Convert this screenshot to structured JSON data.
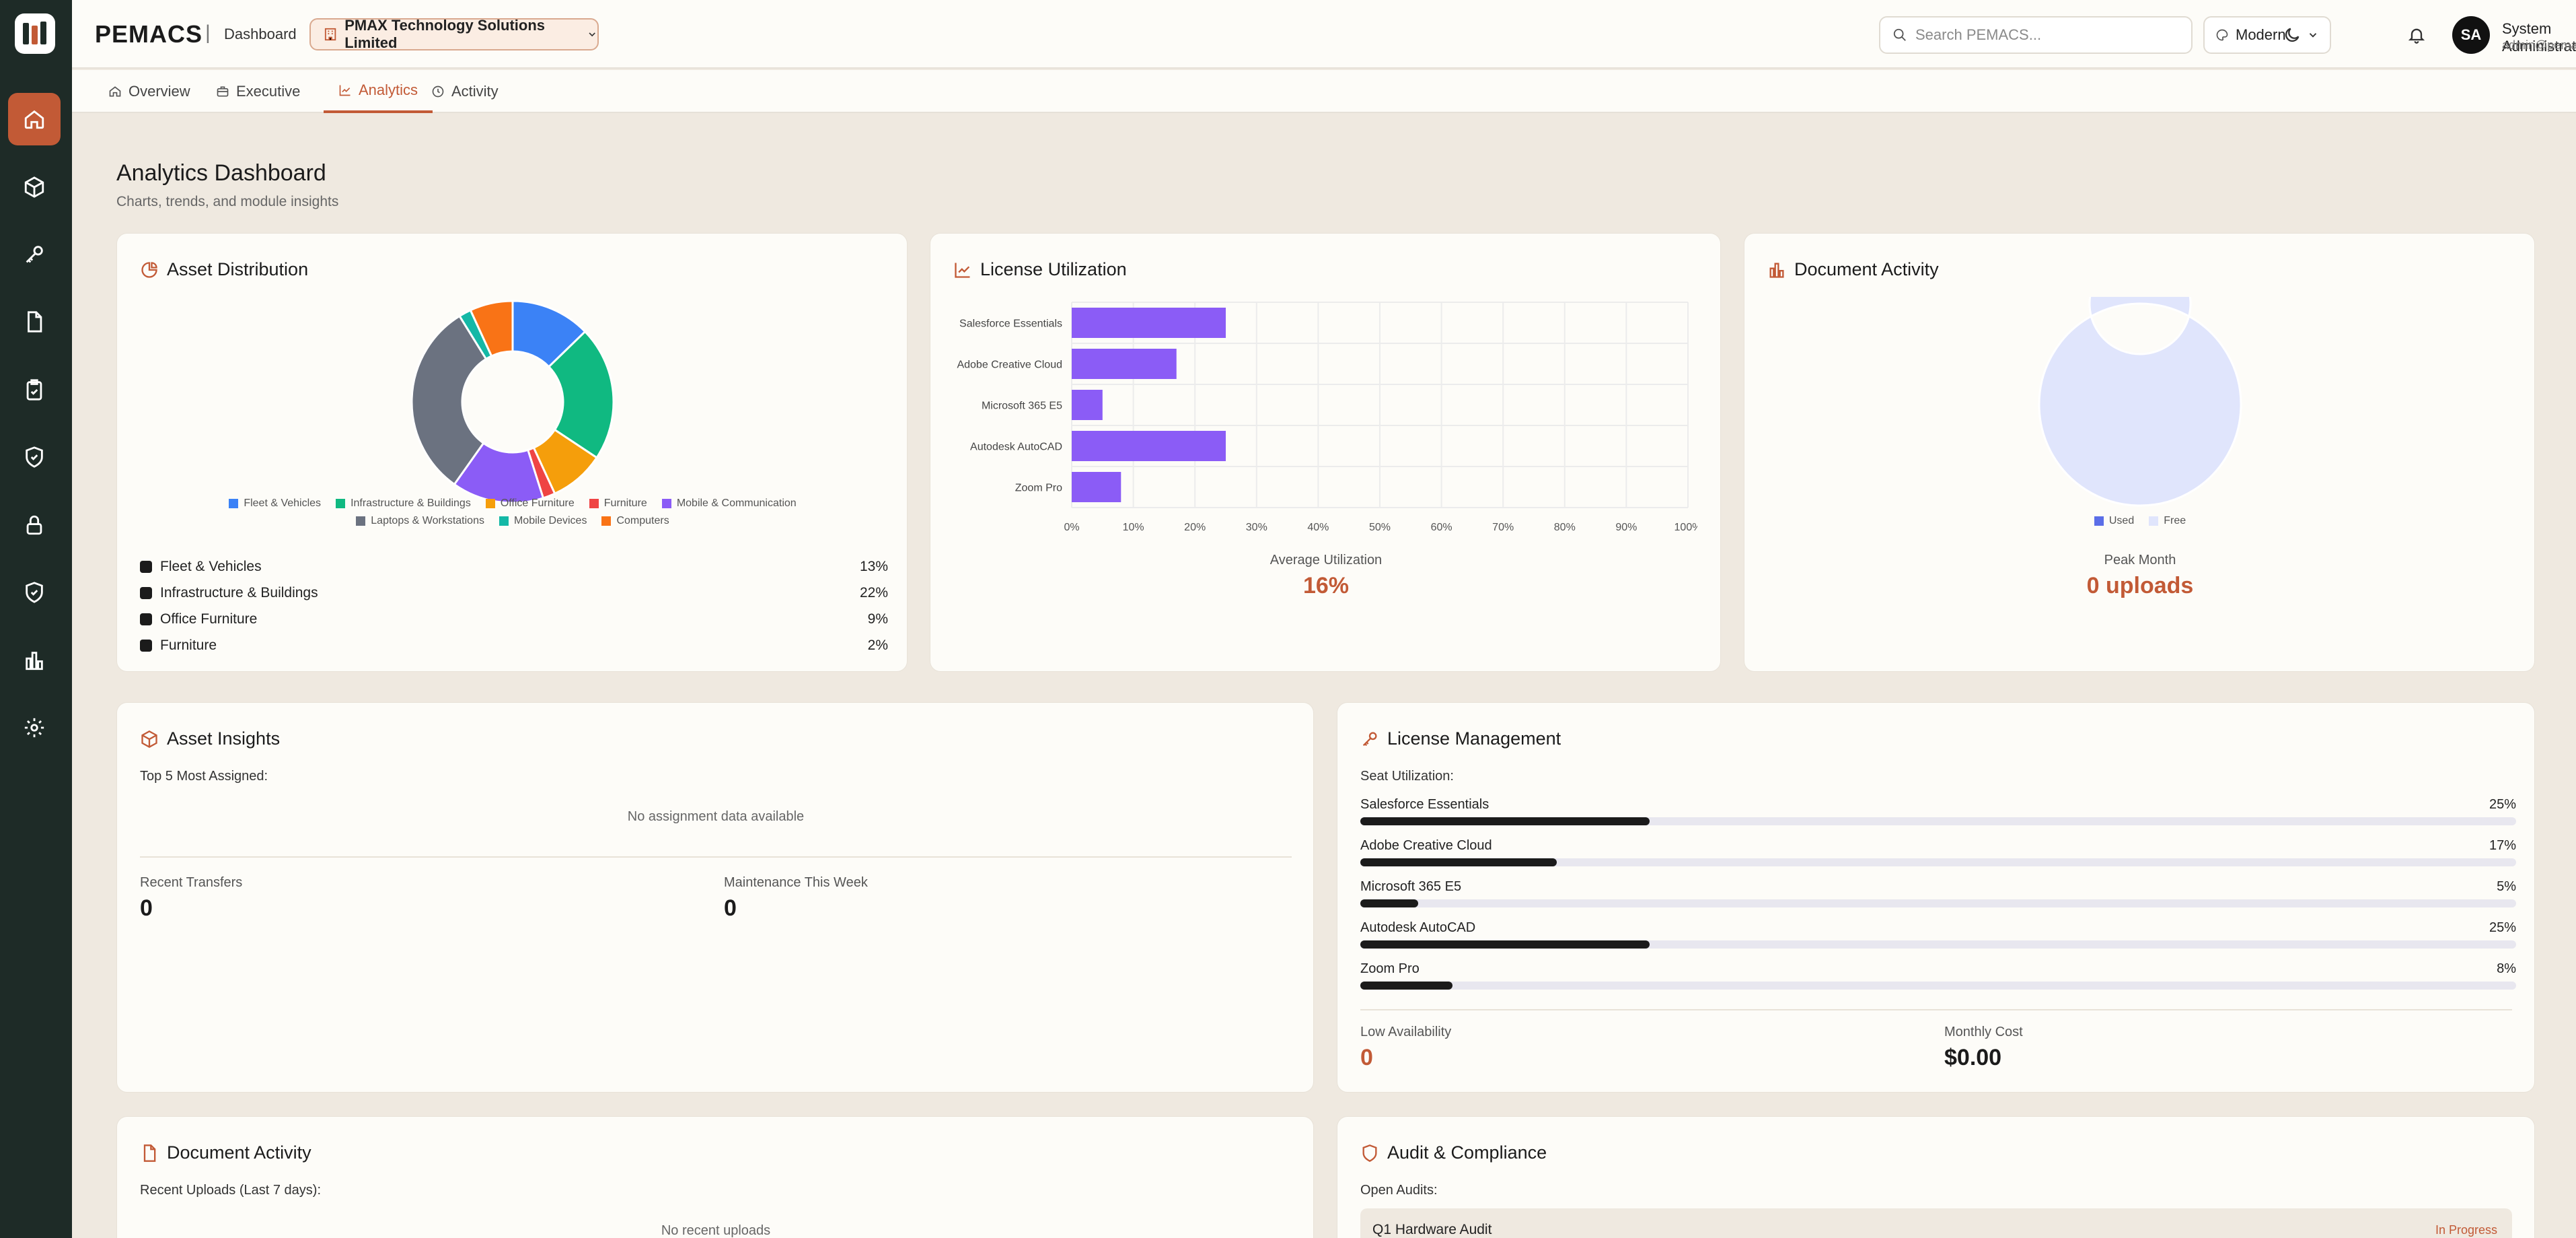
{
  "header": {
    "brand": "PEMACS",
    "separator": "|",
    "section": "Dashboard",
    "organization": "PMAX Technology Solutions Limited",
    "search_placeholder": "Search PEMACS...",
    "theme": "Modern",
    "user": {
      "initials": "SA",
      "name": "System Administrator",
      "email": "admin@pemacs.com"
    }
  },
  "sidebar": {
    "items": [
      {
        "icon": "home-icon",
        "active": true
      },
      {
        "icon": "cube-icon"
      },
      {
        "icon": "key-icon"
      },
      {
        "icon": "document-icon"
      },
      {
        "icon": "clipboard-check-icon"
      },
      {
        "icon": "shield-check-icon"
      },
      {
        "icon": "lock-icon"
      },
      {
        "icon": "shield-icon"
      },
      {
        "icon": "bar-chart-icon"
      },
      {
        "icon": "gear-icon"
      }
    ]
  },
  "tabs": [
    {
      "label": "Overview",
      "icon": "home-icon"
    },
    {
      "label": "Executive",
      "icon": "briefcase-icon"
    },
    {
      "label": "Analytics",
      "icon": "trend-icon",
      "active": true
    },
    {
      "label": "Activity",
      "icon": "clock-icon"
    }
  ],
  "page": {
    "title": "Analytics Dashboard",
    "subtitle": "Charts, trends, and module insights"
  },
  "asset_distribution": {
    "title": "Asset Distribution",
    "list": [
      {
        "label": "Fleet & Vehicles",
        "pct": "13%"
      },
      {
        "label": "Infrastructure & Buildings",
        "pct": "22%"
      },
      {
        "label": "Office Furniture",
        "pct": "9%"
      },
      {
        "label": "Furniture",
        "pct": "2%"
      }
    ]
  },
  "license_utilization": {
    "title": "License Utilization",
    "avg_label": "Average Utilization",
    "avg_value": "16%"
  },
  "document_activity_chart": {
    "title": "Document Activity",
    "peak_label": "Peak Month",
    "peak_value": "0 uploads"
  },
  "asset_insights": {
    "title": "Asset Insights",
    "top_label": "Top 5 Most Assigned:",
    "empty": "No assignment data available",
    "recent_transfers_label": "Recent Transfers",
    "recent_transfers_value": "0",
    "maintenance_label": "Maintenance This Week",
    "maintenance_value": "0"
  },
  "license_management": {
    "title": "License Management",
    "seat_label": "Seat Utilization:",
    "seats": [
      {
        "name": "Salesforce Essentials",
        "pct_text": "25%",
        "pct": 25
      },
      {
        "name": "Adobe Creative Cloud",
        "pct_text": "17%",
        "pct": 17
      },
      {
        "name": "Microsoft 365 E5",
        "pct_text": "5%",
        "pct": 5
      },
      {
        "name": "Autodesk AutoCAD",
        "pct_text": "25%",
        "pct": 25
      },
      {
        "name": "Zoom Pro",
        "pct_text": "8%",
        "pct": 8
      }
    ],
    "low_label": "Low Availability",
    "low_value": "0",
    "cost_label": "Monthly Cost",
    "cost_value": "$0.00"
  },
  "document_activity": {
    "title": "Document Activity",
    "recent_label": "Recent Uploads (Last 7 days):",
    "empty": "No recent uploads"
  },
  "audit": {
    "title": "Audit & Compliance",
    "open_label": "Open Audits:",
    "audits": [
      {
        "name": "Q1 Hardware Audit",
        "status": "In Progress"
      }
    ]
  },
  "colors": {
    "accent": "#C25A36",
    "sidebar": "#1E2B27",
    "bar_purple": "#8B5CF6",
    "doc_used": "#5B6EE8",
    "doc_free": "#E0E5FC"
  },
  "chart_data": [
    {
      "type": "pie",
      "variant": "donut",
      "labels": [
        "Fleet & Vehicles",
        "Infrastructure & Buildings",
        "Office Furniture",
        "Furniture",
        "Mobile & Communication",
        "Laptops & Workstations",
        "Mobile Devices",
        "Computers"
      ],
      "values": [
        13,
        22,
        9,
        2,
        15,
        32,
        2,
        7
      ],
      "colors": [
        "#3B82F6",
        "#10B981",
        "#F59E0B",
        "#EF4444",
        "#8B5CF6",
        "#6B7280",
        "#14B8A6",
        "#F97316"
      ],
      "legend": "bottom"
    },
    {
      "type": "bar",
      "orientation": "horizontal",
      "categories": [
        "Salesforce Essentials",
        "Adobe Creative Cloud",
        "Microsoft 365 E5",
        "Autodesk AutoCAD",
        "Zoom Pro"
      ],
      "values": [
        25,
        17,
        5,
        25,
        8
      ],
      "xlim": [
        0,
        100
      ],
      "xticks": [
        "0%",
        "10%",
        "20%",
        "30%",
        "40%",
        "50%",
        "60%",
        "70%",
        "80%",
        "90%",
        "100%"
      ],
      "grid": true
    },
    {
      "type": "pie",
      "variant": "donut",
      "labels": [
        "Used",
        "Free"
      ],
      "values": [
        0,
        100
      ],
      "colors": [
        "#5B6EE8",
        "#E0E5FC"
      ],
      "legend": "bottom"
    }
  ]
}
